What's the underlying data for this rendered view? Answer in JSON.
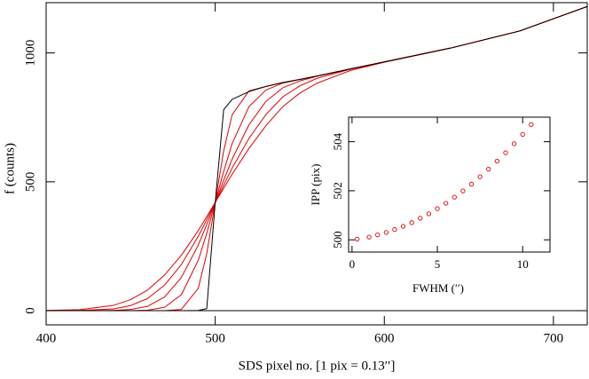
{
  "chart_data": [
    {
      "type": "line",
      "x_label": "SDS pixel no.  [1 pix = 0.13′′]",
      "y_label": "f  (counts)",
      "x": [
        400,
        420,
        440,
        450,
        460,
        470,
        480,
        490,
        495,
        500,
        505,
        510,
        520,
        530,
        540,
        550,
        560,
        580,
        600,
        640,
        680,
        720
      ],
      "series": [
        {
          "color": "#e00000",
          "values": [
            0,
            0,
            0,
            0,
            0,
            0,
            5,
            87,
            222,
            420,
            620,
            760,
            853,
            870,
            885,
            897,
            910,
            938,
            965,
            1020,
            1085,
            1180
          ]
        },
        {
          "color": "#e00000",
          "values": [
            0,
            0,
            0,
            0,
            2,
            13,
            62,
            196,
            300,
            420,
            540,
            648,
            792,
            856,
            883,
            897,
            910,
            938,
            965,
            1020,
            1085,
            1180
          ]
        },
        {
          "color": "#e00000",
          "values": [
            0,
            0,
            1,
            5,
            17,
            53,
            129,
            255,
            334,
            420,
            506,
            588,
            722,
            812,
            865,
            891,
            909,
            938,
            965,
            1020,
            1085,
            1180
          ]
        },
        {
          "color": "#e00000",
          "values": [
            0,
            1,
            7,
            20,
            47,
            99,
            179,
            289,
            353,
            420,
            487,
            553,
            669,
            761,
            830,
            872,
            901,
            937,
            965,
            1020,
            1085,
            1180
          ]
        },
        {
          "color": "#e00000",
          "values": [
            1,
            4,
            21,
            43,
            80,
            138,
            215,
            311,
            365,
            420,
            475,
            529,
            630,
            718,
            792,
            844,
            882,
            932,
            964,
            1020,
            1085,
            1180
          ]
        },
        {
          "color": "#000000",
          "values": [
            0,
            0,
            0,
            0,
            0,
            0,
            0,
            1,
            8,
            420,
            780,
            820,
            850,
            870,
            885,
            897,
            910,
            938,
            965,
            1020,
            1085,
            1180
          ]
        }
      ],
      "xlim": [
        400,
        720
      ],
      "ylim": [
        -55,
        1195
      ],
      "xticks": [
        400,
        500,
        600,
        700
      ],
      "yticks": [
        0,
        500,
        1000
      ],
      "zero_line": true
    },
    {
      "type": "scatter",
      "x_label": "FWHM  (′′)",
      "y_label": "IPP  (pix)",
      "color": "#e00000",
      "x": [
        0.3,
        1.0,
        1.5,
        2.0,
        2.5,
        3.0,
        3.5,
        4.0,
        4.5,
        5.0,
        5.5,
        6.0,
        6.5,
        7.0,
        7.5,
        8.0,
        8.5,
        9.0,
        9.5,
        10.0,
        10.5
      ],
      "values": [
        500.03,
        500.11,
        500.2,
        500.3,
        500.42,
        500.55,
        500.7,
        500.88,
        501.06,
        501.27,
        501.49,
        501.74,
        501.99,
        502.27,
        502.57,
        502.88,
        503.21,
        503.55,
        503.92,
        504.3,
        504.7
      ],
      "xlim": [
        -0.2,
        11.6
      ],
      "ylim": [
        499.5,
        505.0
      ],
      "xticks": [
        0,
        5,
        10
      ],
      "yticks": [
        500,
        502,
        504
      ]
    }
  ]
}
